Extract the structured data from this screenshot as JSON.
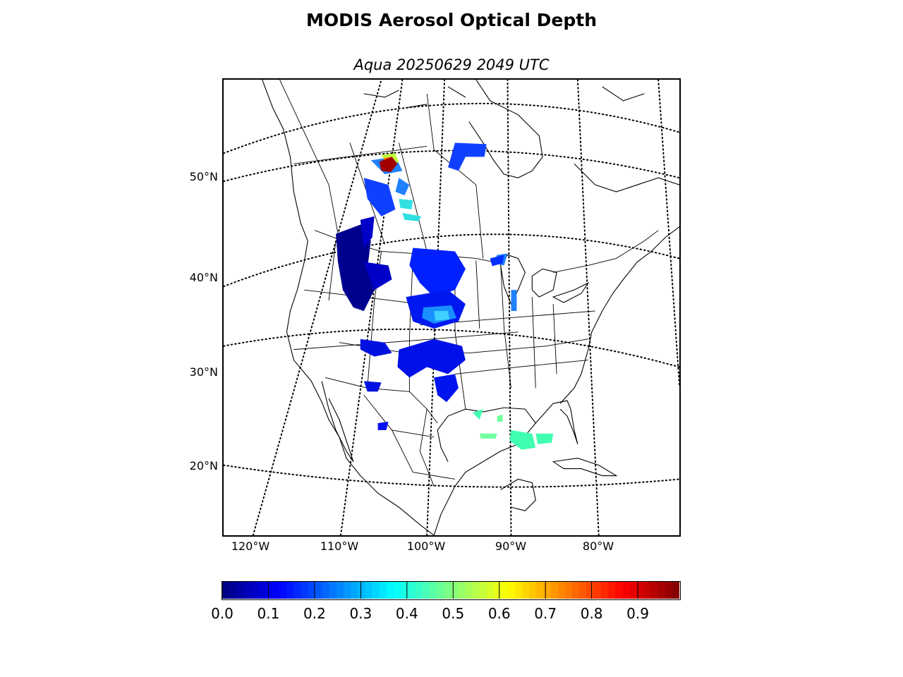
{
  "figure": {
    "title": "MODIS Aerosol Optical Depth",
    "subtitle": "Aqua 20250629 2049 UTC"
  },
  "map": {
    "projection": "lambert-conformal",
    "extent": {
      "lon_min": -123,
      "lon_max": -72,
      "lat_min": 13,
      "lat_max": 60
    },
    "lat_labels": [
      "50°N",
      "40°N",
      "30°N",
      "20°N"
    ],
    "lon_labels": [
      "120°W",
      "110°W",
      "100°W",
      "90°W",
      "80°W"
    ],
    "graticule_style": "dotted",
    "features": [
      "coastlines",
      "country-borders",
      "state-borders",
      "aerosol-retrievals"
    ]
  },
  "colorbar": {
    "colormap": "jet",
    "min": 0.0,
    "max": 0.99,
    "tick_labels": [
      "0.0",
      "0.1",
      "0.2",
      "0.3",
      "0.4",
      "0.5",
      "0.6",
      "0.7",
      "0.8",
      "0.9"
    ]
  },
  "aerosol_regions": [
    {
      "region": "pacific-northwest",
      "aod_level": 0.02,
      "color": "#00008f"
    },
    {
      "region": "central-plains",
      "aod_level": 0.12,
      "color": "#0020ff"
    },
    {
      "region": "southern-plains",
      "aod_level": 0.12,
      "color": "#0010f0"
    },
    {
      "region": "canadian-prairies",
      "aod_level": 0.15,
      "color": "#1040ff"
    },
    {
      "region": "gulf-of-mexico",
      "aod_level": 0.45,
      "color": "#40ffb0"
    },
    {
      "region": "alberta-smoke-plume",
      "aod_level": 0.95,
      "color": "#a00000"
    }
  ]
}
